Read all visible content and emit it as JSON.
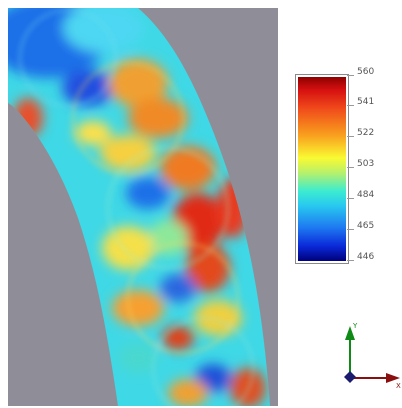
{
  "colorbar": {
    "ticks": [
      "560",
      "541",
      "522",
      "503",
      "484",
      "465",
      "446"
    ]
  },
  "axes": {
    "y_label": "Y",
    "x_label": "X",
    "y_color": "#0f8a16",
    "x_color": "#8a1010",
    "z_color": "#1c1c6e"
  },
  "colors": {
    "background": "#8f8e98",
    "colormap": "jet"
  }
}
